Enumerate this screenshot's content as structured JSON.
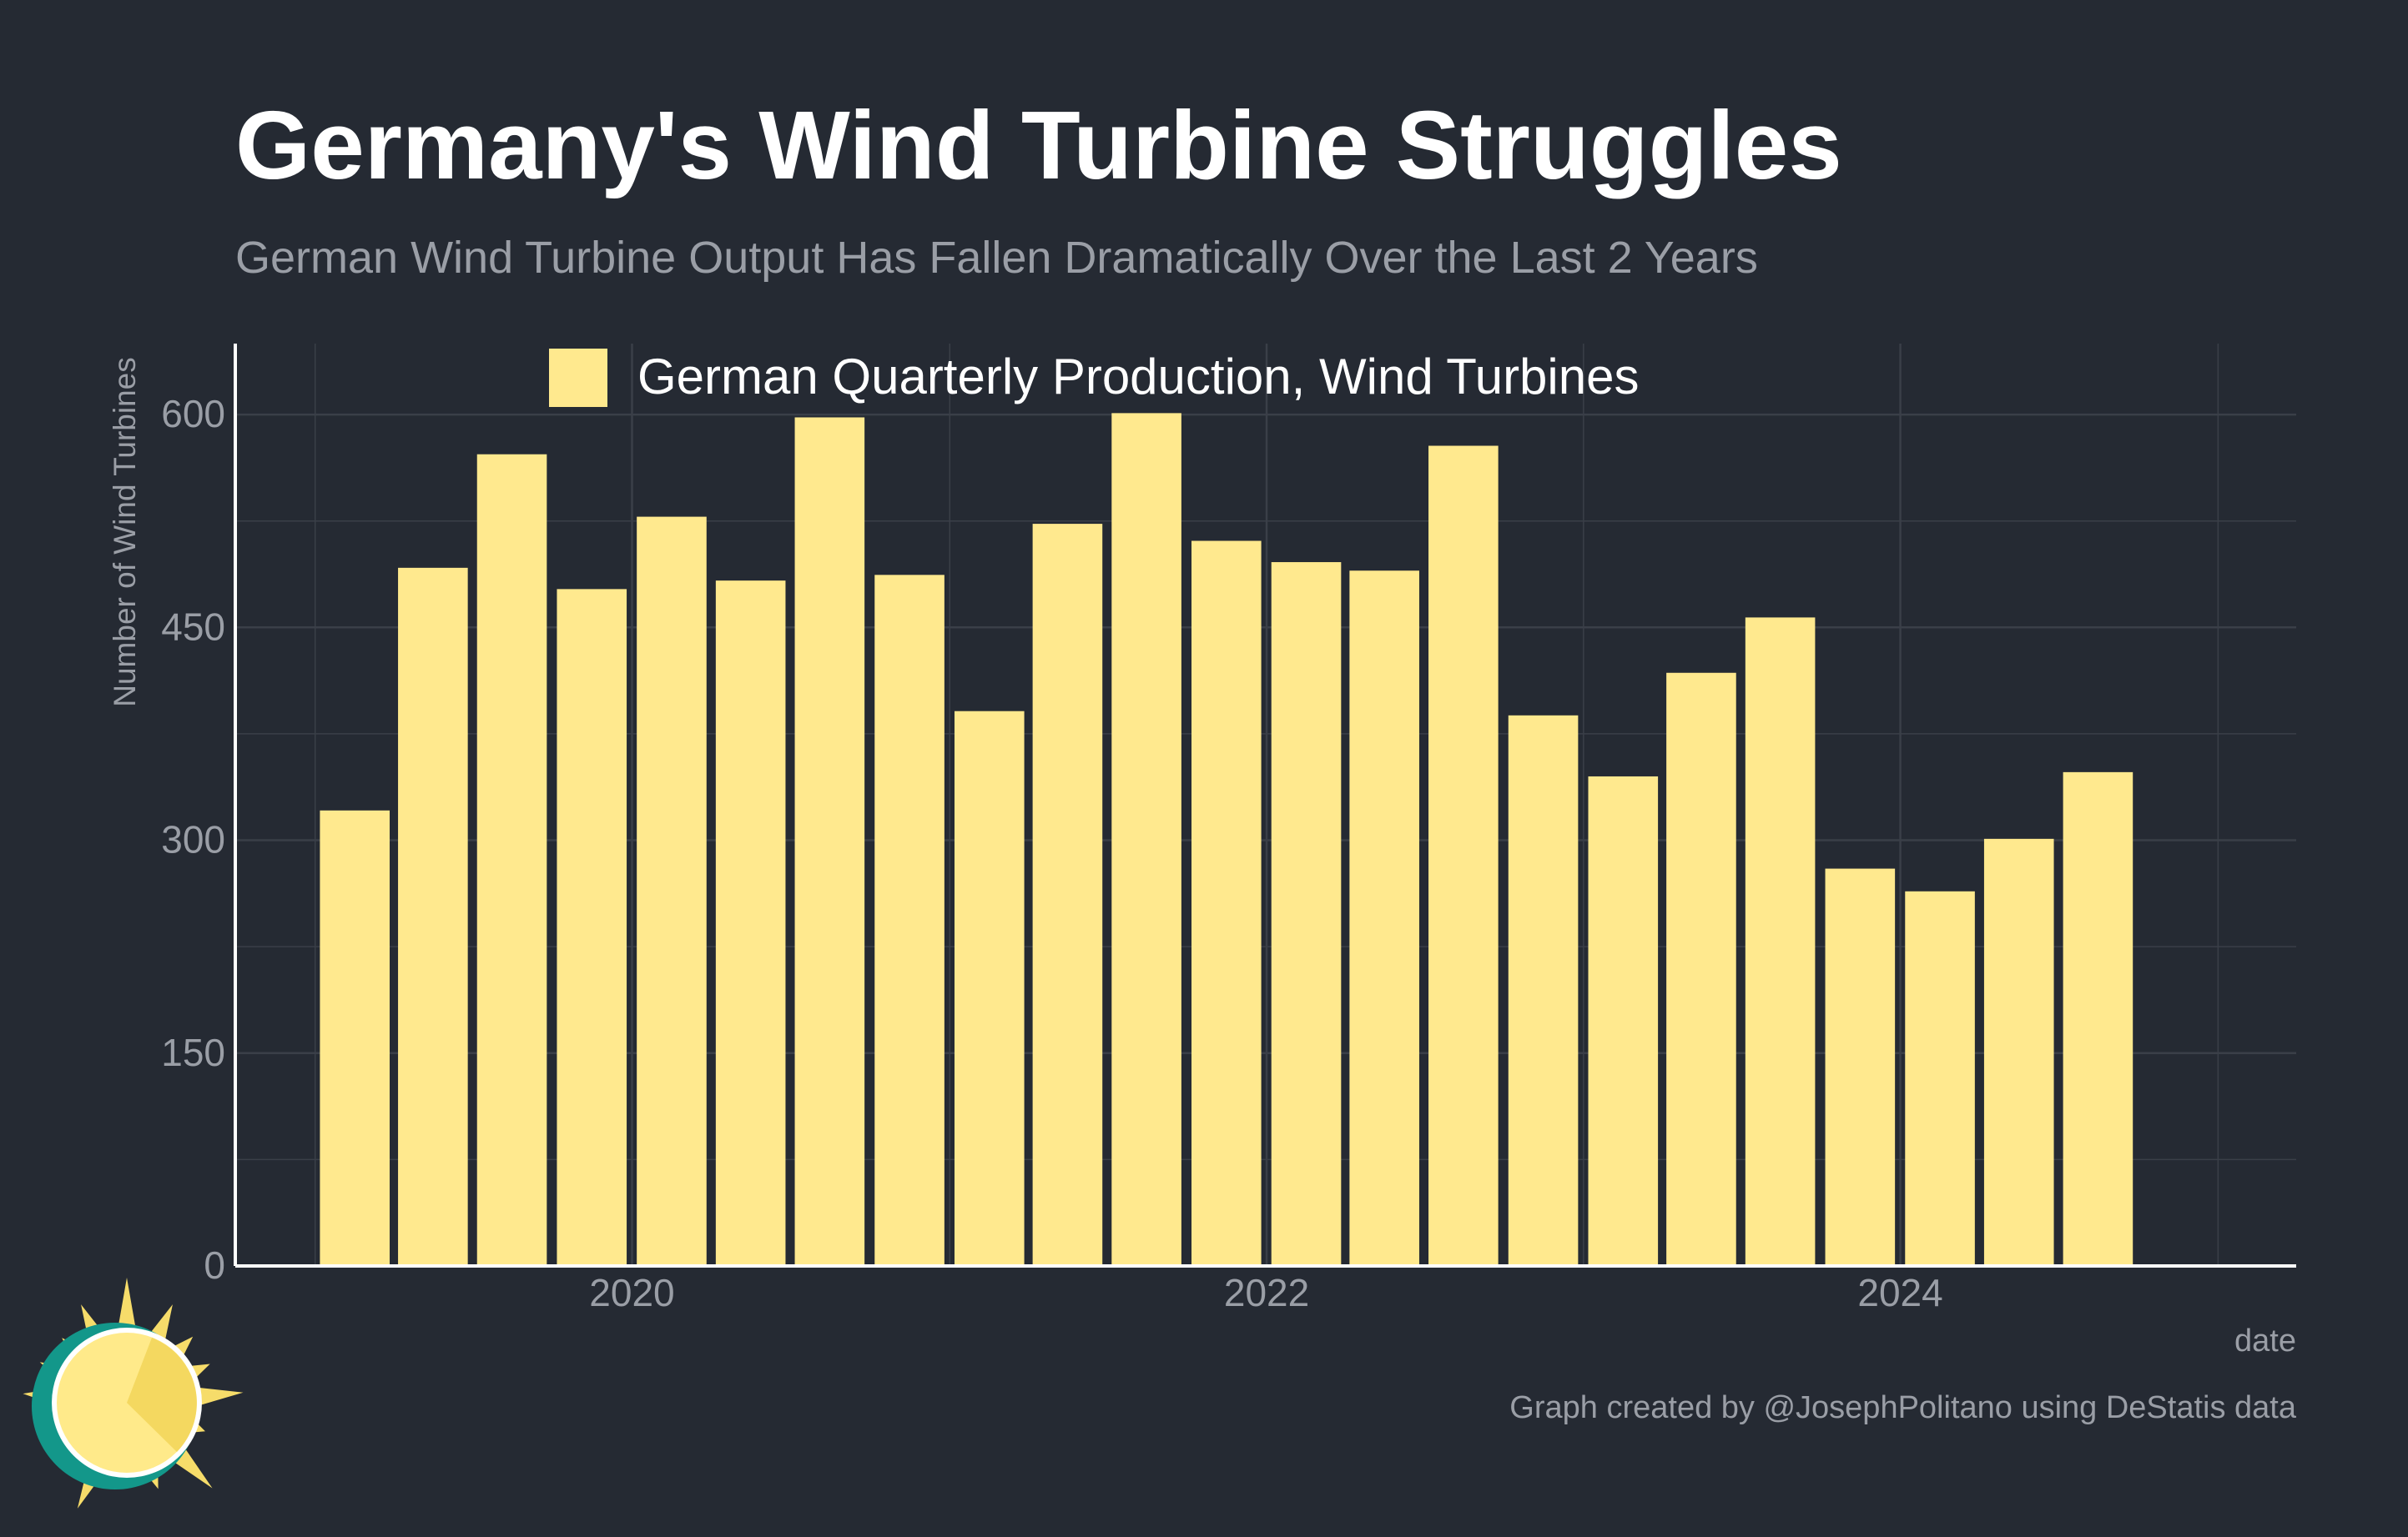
{
  "title": "Germany's Wind Turbine Struggles",
  "subtitle": "German Wind Turbine Output Has Fallen Dramatically Over the Last 2 Years",
  "caption": "Graph created by @JosephPolitano using DeStatis data",
  "logo": "sun-icon",
  "colors": {
    "background": "#252a33",
    "bar": "#ffe98e",
    "grid": "#3a3f48",
    "axis": "#ffffff",
    "text_muted": "#9a9ea6"
  },
  "chart_data": {
    "type": "bar",
    "title": "Germany's Wind Turbine Struggles",
    "subtitle": "German Wind Turbine Output Has Fallen Dramatically Over the Last 2 Years",
    "xlabel": "date",
    "ylabel": "Number of Wind Turbines",
    "ylim": [
      0,
      650
    ],
    "yticks": [
      0,
      150,
      300,
      450,
      600
    ],
    "xticks": [
      "2020",
      "2022",
      "2024"
    ],
    "xlim": [
      "2018-10-01",
      "2025-04-01"
    ],
    "grid": true,
    "legend_position": "top",
    "categories": [
      "2019-01-01",
      "2019-04-01",
      "2019-07-01",
      "2019-10-01",
      "2020-01-01",
      "2020-04-01",
      "2020-07-01",
      "2020-10-01",
      "2021-01-01",
      "2021-04-01",
      "2021-07-01",
      "2021-10-01",
      "2022-01-01",
      "2022-04-01",
      "2022-07-01",
      "2022-10-01",
      "2023-01-01",
      "2023-04-01",
      "2023-07-01",
      "2023-10-01",
      "2024-01-01",
      "2024-04-01",
      "2024-07-01"
    ],
    "series": [
      {
        "name": "German Quarterly Production, Wind Turbines",
        "values": [
          321,
          492,
          572,
          477,
          528,
          483,
          598,
          487,
          391,
          523,
          601,
          511,
          496,
          490,
          578,
          388,
          345,
          418,
          457,
          280,
          264,
          301,
          348
        ]
      }
    ]
  }
}
